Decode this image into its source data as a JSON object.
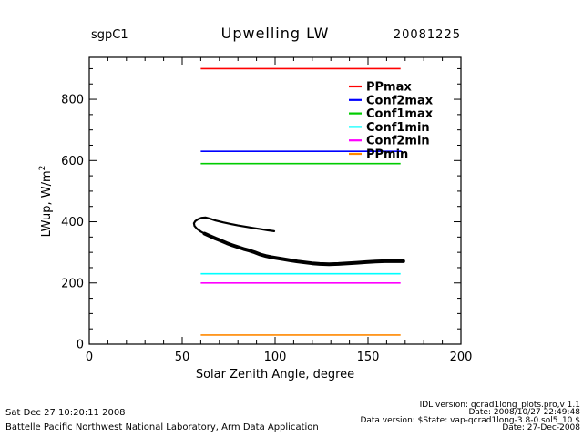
{
  "header": {
    "site_label": "sgpC1",
    "date_label": "20081225"
  },
  "chart_data": {
    "type": "line",
    "title": "Upwelling LW",
    "xlabel": "Solar Zenith Angle, degree",
    "ylabel_base": "LWup, W/m",
    "ylabel_sup": "2",
    "xlim": [
      0,
      200
    ],
    "ylim": [
      0,
      937
    ],
    "xticks": [
      0,
      50,
      100,
      150,
      200
    ],
    "yticks": [
      0,
      200,
      400,
      600,
      800
    ],
    "x_minor_step": 10,
    "y_minor_step": 50,
    "grid": false,
    "legend_position": "inside-right",
    "limit_lines": [
      {
        "name": "PPmax",
        "value": 900,
        "color": "#ff0000",
        "x_start": 60,
        "x_end": 167.5
      },
      {
        "name": "Conf2max",
        "value": 630,
        "color": "#0000ff",
        "x_start": 60,
        "x_end": 168
      },
      {
        "name": "Conf1max",
        "value": 590,
        "color": "#00cc00",
        "x_start": 60,
        "x_end": 167.5
      },
      {
        "name": "Conf1min",
        "value": 230,
        "color": "#00ffff",
        "x_start": 60,
        "x_end": 167.5
      },
      {
        "name": "Conf2min",
        "value": 200,
        "color": "#ff00ff",
        "x_start": 60,
        "x_end": 167.5
      },
      {
        "name": "PPmin",
        "value": 30,
        "color": "#ff8800",
        "x_start": 60,
        "x_end": 167.5
      }
    ],
    "series": [
      {
        "name": "LWup daytime branch",
        "color": "#000000",
        "width": 2.2,
        "points": [
          [
            99.5,
            369
          ],
          [
            96,
            372
          ],
          [
            92,
            376
          ],
          [
            88,
            380
          ],
          [
            84,
            384
          ],
          [
            80,
            388
          ],
          [
            76,
            393
          ],
          [
            72,
            398
          ],
          [
            68,
            404
          ],
          [
            65,
            410
          ],
          [
            62.5,
            414
          ],
          [
            60.5,
            413
          ],
          [
            58.5,
            408
          ],
          [
            57,
            402
          ],
          [
            56.3,
            395
          ],
          [
            56.6,
            386
          ],
          [
            58,
            377
          ],
          [
            60,
            368
          ],
          [
            62,
            361
          ]
        ]
      },
      {
        "name": "LWup main branch",
        "color": "#000000",
        "width": 4,
        "points": [
          [
            62,
            361
          ],
          [
            65,
            353
          ],
          [
            68,
            345
          ],
          [
            71,
            338
          ],
          [
            74,
            330
          ],
          [
            77,
            323
          ],
          [
            80,
            317
          ],
          [
            83,
            311
          ],
          [
            86,
            306
          ],
          [
            89,
            300
          ],
          [
            92,
            293
          ],
          [
            95,
            288
          ],
          [
            98,
            284
          ],
          [
            101,
            281
          ],
          [
            104,
            278
          ],
          [
            108,
            274
          ],
          [
            112,
            270
          ],
          [
            116,
            267
          ],
          [
            120,
            264
          ],
          [
            124,
            262
          ],
          [
            129,
            261
          ],
          [
            134,
            262
          ],
          [
            139,
            264
          ],
          [
            144,
            266
          ],
          [
            149,
            268
          ],
          [
            154,
            270
          ],
          [
            159,
            271
          ],
          [
            164,
            271
          ],
          [
            169,
            271
          ]
        ]
      }
    ]
  },
  "legend": {
    "entries": [
      {
        "label": "PPmax",
        "color": "#ff0000"
      },
      {
        "label": "Conf2max",
        "color": "#0000ff"
      },
      {
        "label": "Conf1max",
        "color": "#00cc00"
      },
      {
        "label": "Conf1min",
        "color": "#00ffff"
      },
      {
        "label": "Conf2min",
        "color": "#ff00ff"
      },
      {
        "label": "PPmin",
        "color": "#ff8800"
      }
    ]
  },
  "footer_left": {
    "timestamp": "Sat Dec 27 10:20:11 2008",
    "organization": "Battelle Pacific Northwest National Laboratory, Arm Data Application"
  },
  "footer_right": {
    "idl_version": "IDL version: qcrad1long_plots.pro,v 1.1",
    "idl_date": "Date: 2008/10/27 22:49:48",
    "data_version": "Data version: $State: vap-qcrad1long-3.8-0.sol5_10 $",
    "data_date": "Date: 27-Dec-2008"
  }
}
